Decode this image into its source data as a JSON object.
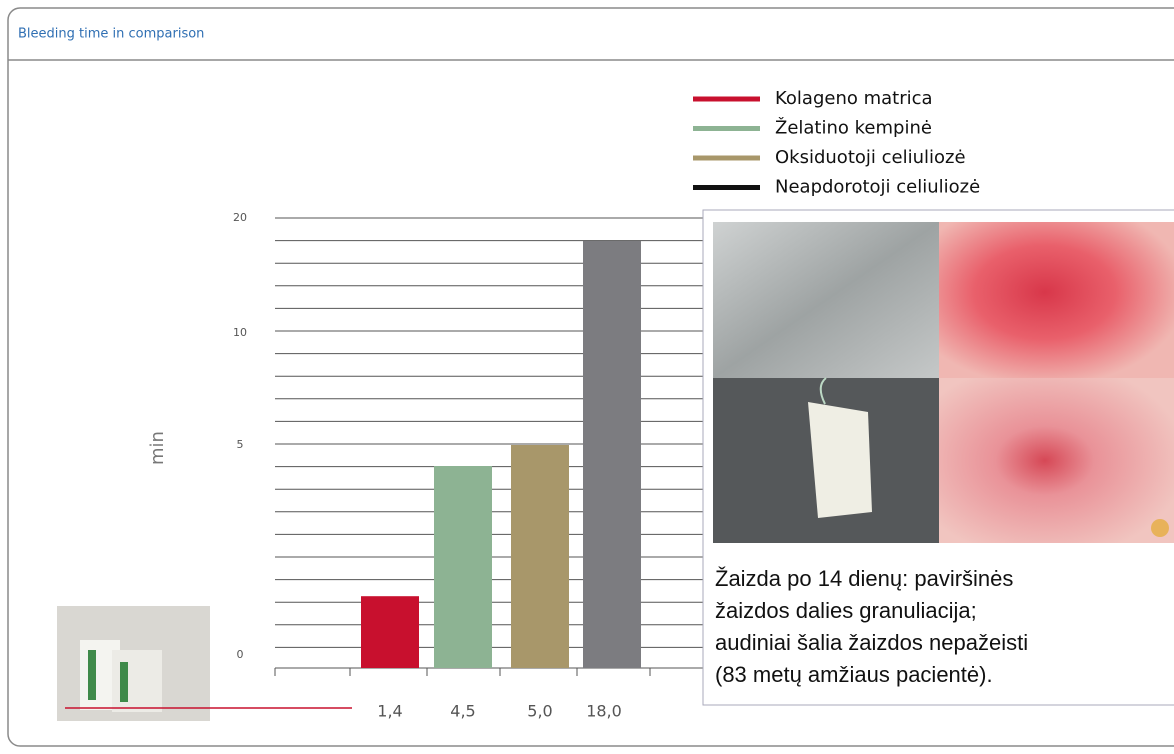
{
  "header": {
    "title": "Bleeding time in comparison"
  },
  "chart_data": {
    "type": "bar",
    "y_label": "min",
    "series": [
      {
        "name": "Kolageno matrica",
        "color": "#c8102e",
        "bar_color": "#c8102e",
        "values": [
          1.4
        ],
        "value_labels": [
          "1,4"
        ]
      },
      {
        "name": "Želatino kempinė",
        "color": "#8db393",
        "bar_color": "#8db393",
        "values": [
          4.5
        ],
        "value_labels": [
          "4,5"
        ]
      },
      {
        "name": "Oksiduotoji celiuliozė",
        "color": "#a8976a",
        "bar_color": "#a8976a",
        "values": [
          5.0
        ],
        "value_labels": [
          "5,0"
        ]
      },
      {
        "name": "Neapdorotoji celiuliozė",
        "color": "#111111",
        "bar_color": "#7c7c80",
        "values": [
          18.0
        ],
        "value_labels": [
          "18,0"
        ]
      }
    ],
    "ylim": [
      0,
      20
    ],
    "yticks": [
      0,
      5,
      10,
      20
    ]
  },
  "panel": {
    "caption": [
      "Žaizda po 14 dienų: paviršinės",
      "žaizdos dalies granuliacija;",
      "audiniai šalia žaizdos nepažeisti",
      "(83 metų amžiaus pacientė)."
    ]
  }
}
